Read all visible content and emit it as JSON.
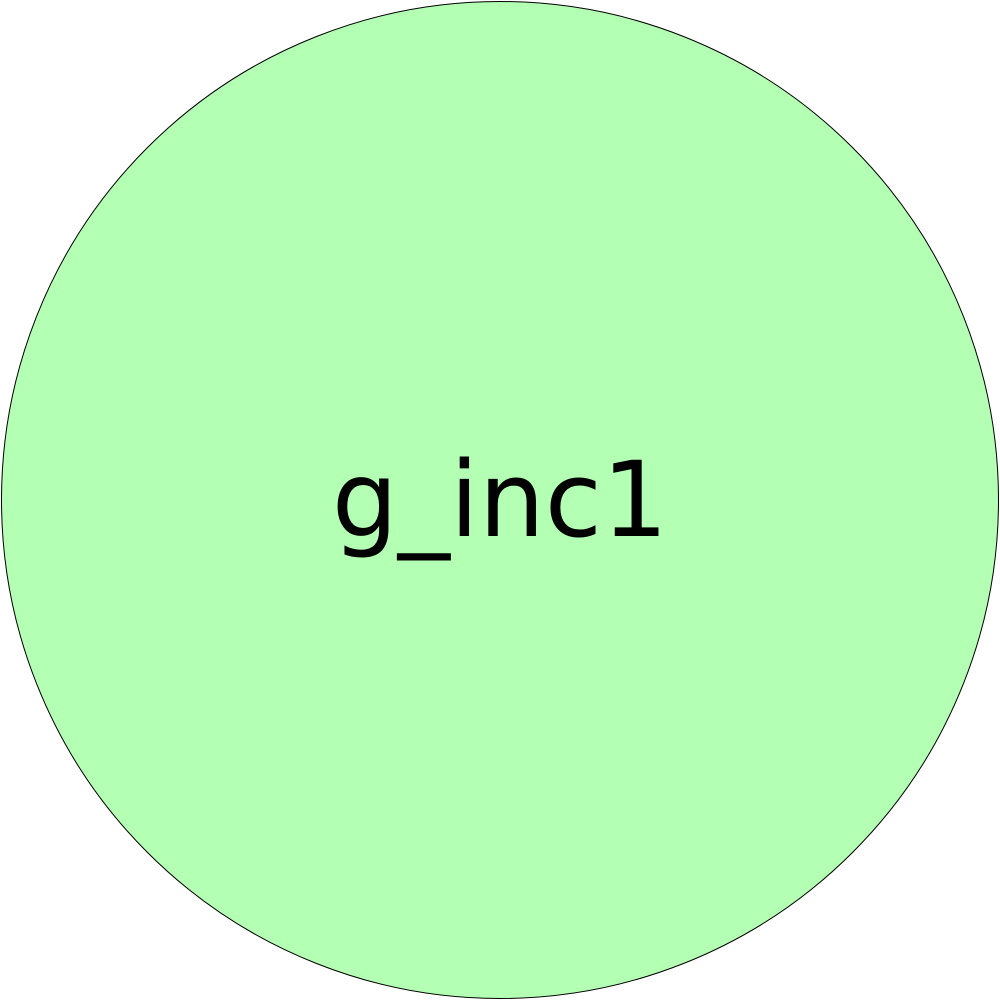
{
  "diagram": {
    "node": {
      "label": "g_inc1",
      "fill_color": "#b3ffb3",
      "stroke_color": "#000000",
      "shape": "circle"
    }
  }
}
